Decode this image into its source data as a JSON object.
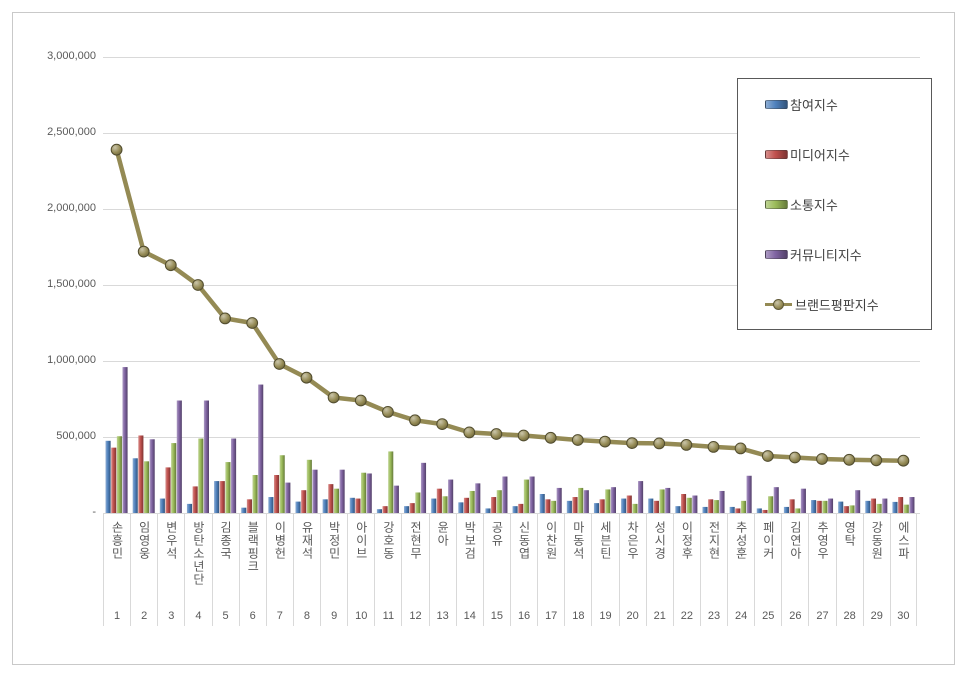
{
  "window": {
    "background": "#ffffff",
    "border_color": "#c9c9c9"
  },
  "chart_data": {
    "type": "bar",
    "combo": "grouped 3D bars with line overlay (brand reputation ranking chart)",
    "title": "",
    "xlabel": "",
    "ylabel": "",
    "ylim": [
      0,
      3000000
    ],
    "ytick_step": 500000,
    "ytick_labels": [
      "-",
      "500,000",
      "1,000,000",
      "1,500,000",
      "2,000,000",
      "2,500,000",
      "3,000,000"
    ],
    "grid": true,
    "legend_position": "upper right",
    "categories": [
      "손흥민",
      "임영웅",
      "변우석",
      "방탄소년단",
      "김종국",
      "블랙핑크",
      "이병헌",
      "유재석",
      "박정민",
      "아이브",
      "강호동",
      "전현무",
      "윤아",
      "박보검",
      "공유",
      "신동엽",
      "이찬원",
      "마동석",
      "세븐틴",
      "차은우",
      "성시경",
      "이정후",
      "전지현",
      "추성훈",
      "페이커",
      "김연아",
      "추영우",
      "영탁",
      "강동원",
      "에스파"
    ],
    "ranks": [
      1,
      2,
      3,
      4,
      5,
      6,
      7,
      8,
      9,
      10,
      11,
      12,
      13,
      14,
      15,
      16,
      17,
      18,
      19,
      20,
      21,
      22,
      23,
      24,
      25,
      26,
      27,
      28,
      29,
      30
    ],
    "series": [
      {
        "name": "참여지수",
        "type": "bar",
        "color": "#4f81bd",
        "values": [
          475000,
          360000,
          95000,
          60000,
          210000,
          35000,
          105000,
          75000,
          90000,
          100000,
          25000,
          45000,
          95000,
          70000,
          30000,
          45000,
          125000,
          80000,
          65000,
          95000,
          95000,
          45000,
          40000,
          40000,
          30000,
          40000,
          85000,
          75000,
          80000,
          73000
        ]
      },
      {
        "name": "미디어지수",
        "type": "bar",
        "color": "#c0504d",
        "values": [
          430000,
          510000,
          300000,
          175000,
          210000,
          90000,
          250000,
          150000,
          190000,
          95000,
          45000,
          65000,
          160000,
          100000,
          105000,
          60000,
          90000,
          105000,
          90000,
          115000,
          80000,
          125000,
          90000,
          30000,
          20000,
          90000,
          80000,
          45000,
          95000,
          105000
        ]
      },
      {
        "name": "소통지수",
        "type": "bar",
        "color": "#9bbb59",
        "values": [
          505000,
          340000,
          460000,
          490000,
          335000,
          250000,
          380000,
          350000,
          160000,
          265000,
          405000,
          135000,
          110000,
          145000,
          150000,
          220000,
          80000,
          165000,
          155000,
          60000,
          155000,
          100000,
          85000,
          80000,
          110000,
          30000,
          80000,
          50000,
          60000,
          55000
        ]
      },
      {
        "name": "커뮤니티지수",
        "type": "bar",
        "color": "#8064a2",
        "values": [
          960000,
          485000,
          740000,
          740000,
          490000,
          845000,
          200000,
          285000,
          285000,
          260000,
          180000,
          330000,
          220000,
          195000,
          240000,
          240000,
          165000,
          150000,
          170000,
          210000,
          165000,
          115000,
          145000,
          245000,
          170000,
          160000,
          95000,
          150000,
          95000,
          105000
        ]
      },
      {
        "name": "브랜드평판지수",
        "type": "line",
        "color": "#948a54",
        "values": [
          2390000,
          1720000,
          1630000,
          1500000,
          1280000,
          1250000,
          980000,
          890000,
          760000,
          740000,
          665000,
          610000,
          585000,
          530000,
          520000,
          510000,
          495000,
          480000,
          470000,
          460000,
          458000,
          448000,
          435000,
          425000,
          375000,
          365000,
          355000,
          350000,
          347000,
          344000
        ]
      }
    ]
  }
}
